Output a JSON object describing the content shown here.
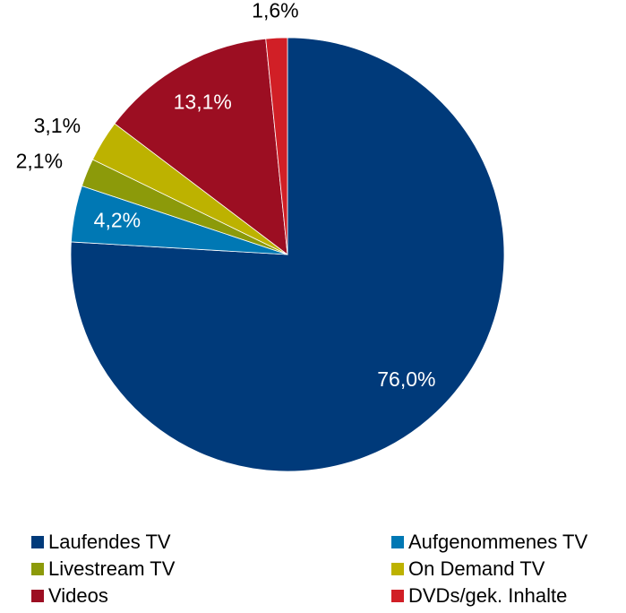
{
  "chart_data": {
    "type": "pie",
    "categories": [
      "Laufendes TV",
      "Aufgenommenes TV",
      "Livestream TV",
      "On Demand TV",
      "Videos",
      "DVDs/gek. Inhalte"
    ],
    "values": [
      76.0,
      4.2,
      2.1,
      3.1,
      13.1,
      1.6
    ],
    "value_labels": [
      "76,0%",
      "4,2%",
      "2,1%",
      "3,1%",
      "13,1%",
      "1,6%"
    ],
    "colors": [
      "#003a7a",
      "#0078b4",
      "#8c9a0a",
      "#bdb200",
      "#9c0e22",
      "#d11f26"
    ],
    "legend": "bottom"
  }
}
